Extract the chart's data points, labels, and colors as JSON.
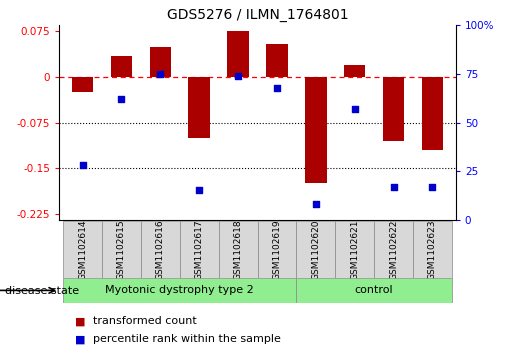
{
  "title": "GDS5276 / ILMN_1764801",
  "samples": [
    "GSM1102614",
    "GSM1102615",
    "GSM1102616",
    "GSM1102617",
    "GSM1102618",
    "GSM1102619",
    "GSM1102620",
    "GSM1102621",
    "GSM1102622",
    "GSM1102623"
  ],
  "transformed_count": [
    -0.025,
    0.035,
    0.05,
    -0.1,
    0.075,
    0.055,
    -0.175,
    0.02,
    -0.105,
    -0.12
  ],
  "percentile_rank": [
    28,
    62,
    75,
    15,
    74,
    68,
    8,
    57,
    17,
    17
  ],
  "ylim_left": [
    -0.235,
    0.085
  ],
  "ylim_right": [
    0,
    100
  ],
  "yticks_left": [
    0.075,
    0.0,
    -0.075,
    -0.15,
    -0.225
  ],
  "yticks_right": [
    100,
    75,
    50,
    25,
    0
  ],
  "bar_color": "#AA0000",
  "dot_color": "#0000CC",
  "hline_y": 0.0,
  "dotted_lines": [
    -0.075,
    -0.15
  ],
  "disease_groups": [
    {
      "label": "Myotonic dystrophy type 2",
      "start": 0,
      "end": 6,
      "color": "#90EE90"
    },
    {
      "label": "control",
      "start": 6,
      "end": 10,
      "color": "#90EE90"
    }
  ],
  "legend_bar_label": "transformed count",
  "legend_dot_label": "percentile rank within the sample",
  "disease_state_label": "disease state",
  "background_color": "#ffffff",
  "xlim": [
    -0.6,
    9.6
  ]
}
